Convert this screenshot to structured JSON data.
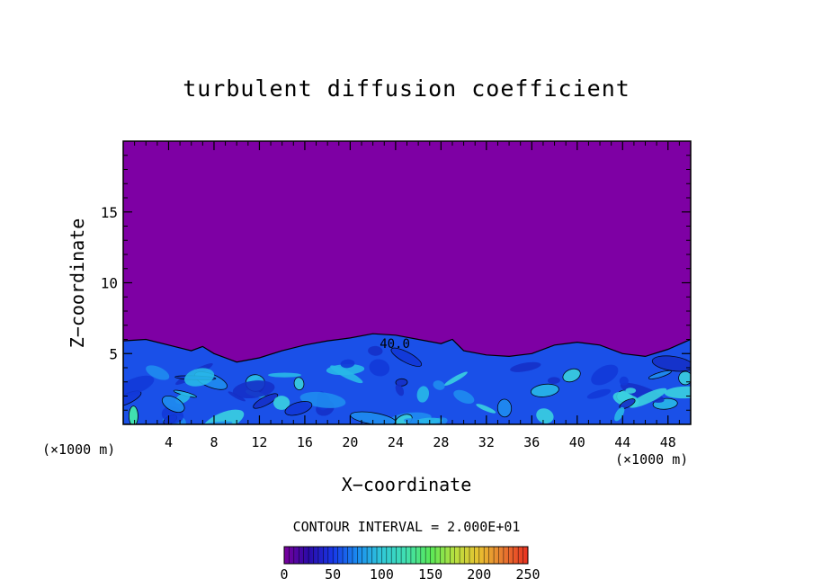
{
  "chart_data": {
    "type": "heatmap",
    "title": "turbulent diffusion coefficient",
    "xlabel": "X−coordinate",
    "ylabel": "Z−coordinate",
    "x_unit": "(×1000 m)",
    "y_unit": "(×1000 m)",
    "xlim": [
      0,
      50
    ],
    "ylim": [
      0,
      20
    ],
    "x_ticks": [
      4,
      8,
      12,
      16,
      20,
      24,
      28,
      32,
      36,
      40,
      44,
      48
    ],
    "y_ticks": [
      5,
      10,
      15
    ],
    "contour_interval_label": "CONTOUR INTERVAL = 2.000E+01",
    "contour_label": "40.0",
    "colorbar": {
      "min": 0,
      "max": 250,
      "ticks": [
        0,
        50,
        100,
        150,
        200,
        250
      ],
      "colors": [
        "#7a009c",
        "#2a0aa8",
        "#1838e8",
        "#1a8cf0",
        "#30c8d8",
        "#40e0b0",
        "#58e858",
        "#b8e040",
        "#e8c030",
        "#e87830",
        "#e83020"
      ]
    },
    "background_value_color": "#7e00a4",
    "turbulent_layer_top_km": [
      [
        0,
        5.9
      ],
      [
        2,
        6.0
      ],
      [
        4,
        5.6
      ],
      [
        6,
        5.2
      ],
      [
        7,
        5.5
      ],
      [
        8,
        5.0
      ],
      [
        10,
        4.4
      ],
      [
        12,
        4.7
      ],
      [
        14,
        5.2
      ],
      [
        16,
        5.6
      ],
      [
        18,
        5.9
      ],
      [
        20,
        6.1
      ],
      [
        22,
        6.4
      ],
      [
        24,
        6.3
      ],
      [
        26,
        6.0
      ],
      [
        28,
        5.7
      ],
      [
        29,
        6.0
      ],
      [
        30,
        5.2
      ],
      [
        32,
        4.9
      ],
      [
        34,
        4.8
      ],
      [
        36,
        5.0
      ],
      [
        38,
        5.6
      ],
      [
        40,
        5.8
      ],
      [
        42,
        5.6
      ],
      [
        44,
        5.0
      ],
      [
        46,
        4.8
      ],
      [
        48,
        5.3
      ],
      [
        50,
        6.0
      ]
    ]
  }
}
